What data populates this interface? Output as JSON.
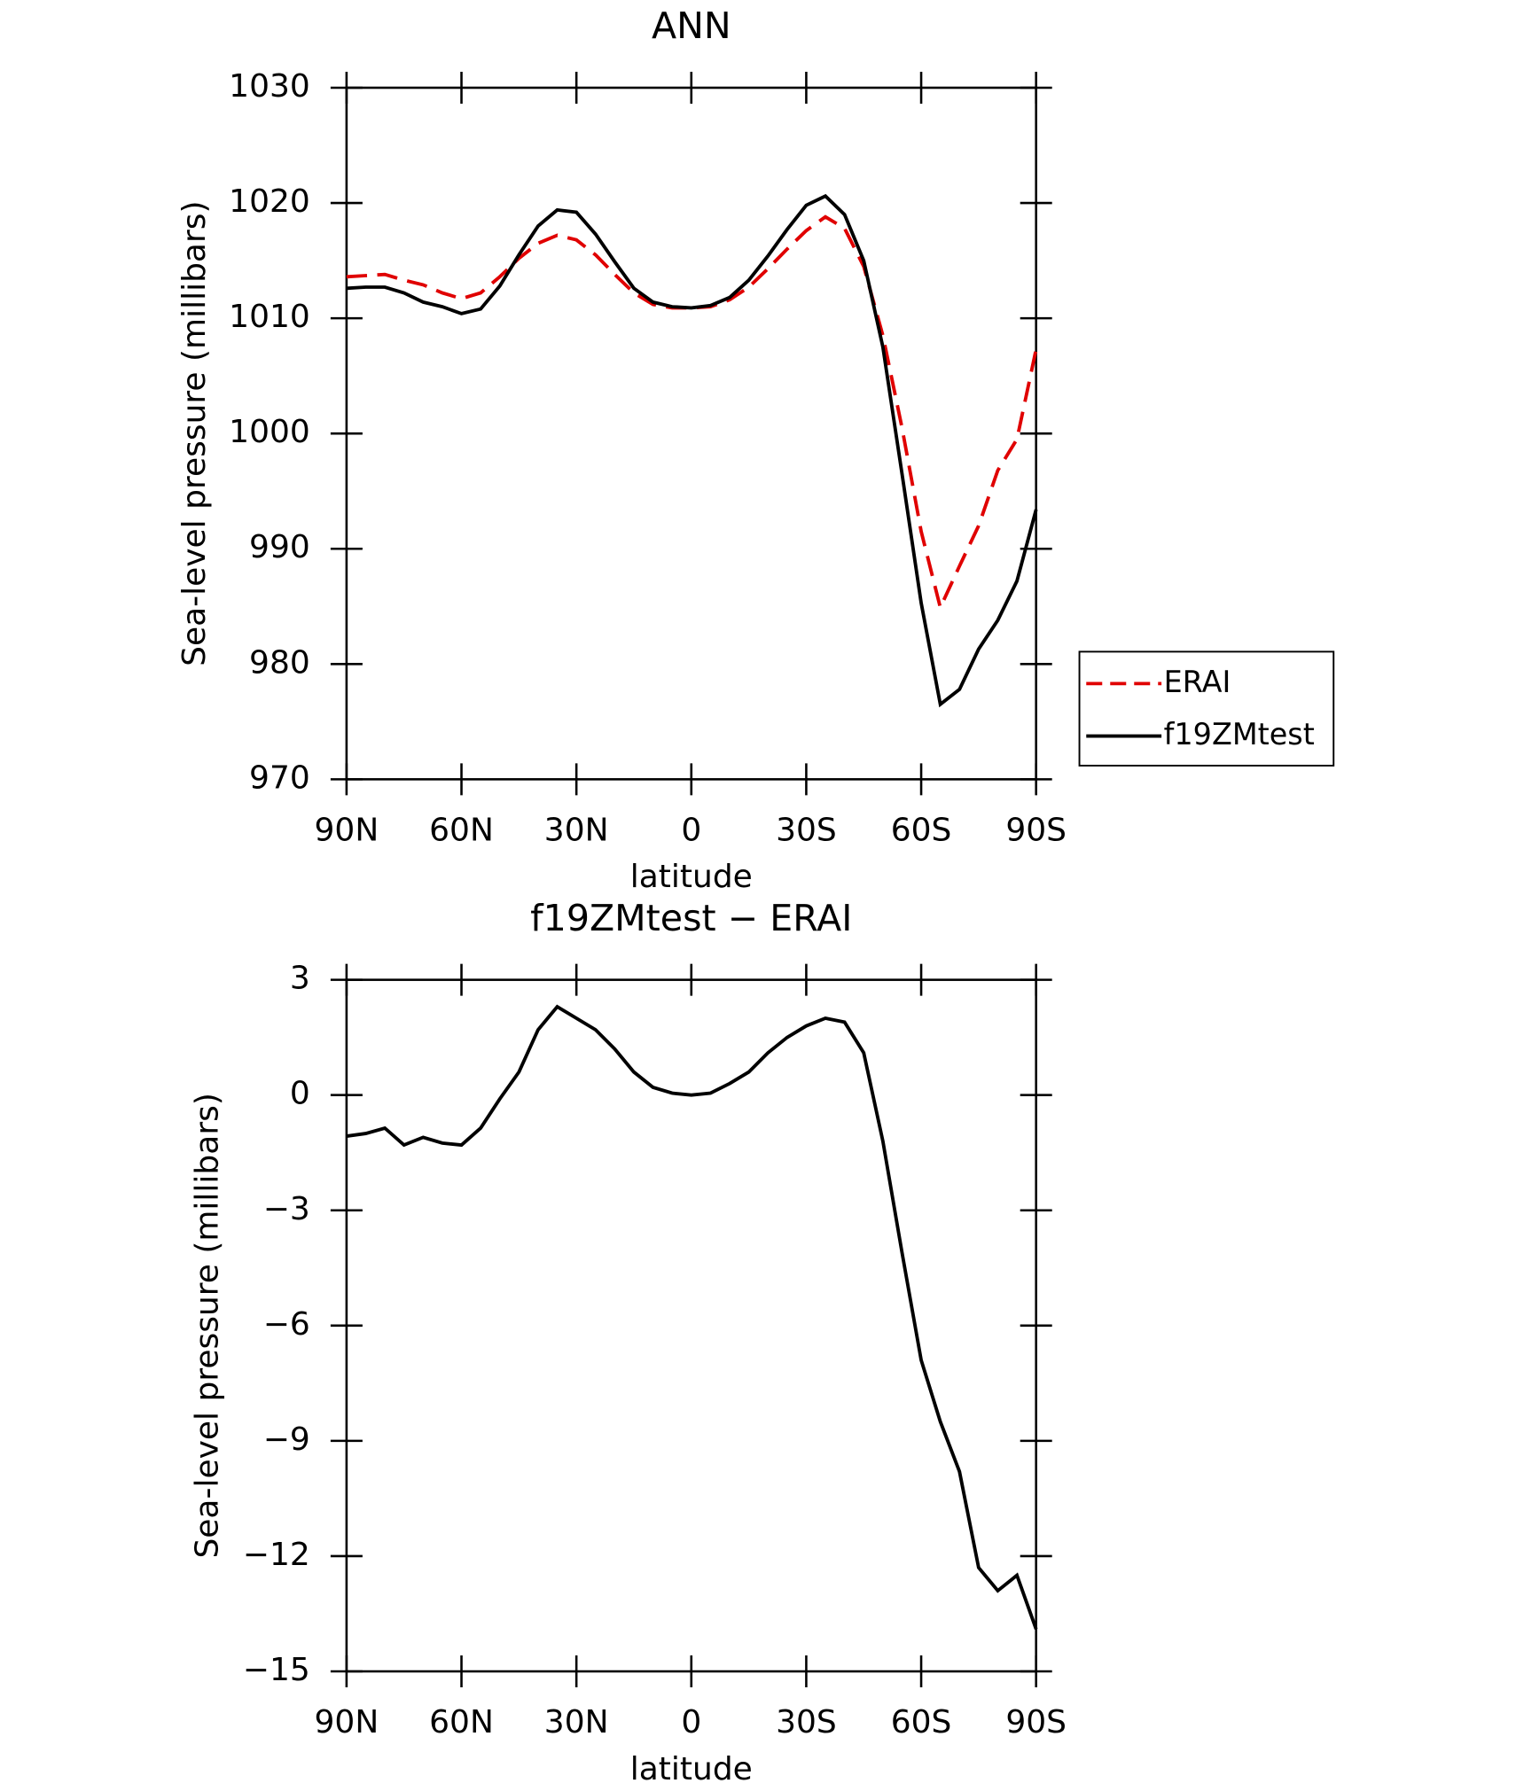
{
  "chart_data": [
    {
      "type": "line",
      "title": "ANN",
      "x_label": "latitude",
      "y_label": "Sea-level pressure (millibars)",
      "x": [
        90,
        85,
        80,
        75,
        70,
        65,
        60,
        55,
        50,
        45,
        40,
        35,
        30,
        25,
        20,
        15,
        10,
        5,
        0,
        -5,
        -10,
        -15,
        -20,
        -25,
        -30,
        -35,
        -40,
        -45,
        -50,
        -55,
        -60,
        -65,
        -70,
        -75,
        -80,
        -85,
        -90
      ],
      "xlim": [
        90,
        -90
      ],
      "xticks": [
        {
          "value": 90,
          "label": "90N"
        },
        {
          "value": 60,
          "label": "60N"
        },
        {
          "value": 30,
          "label": "30N"
        },
        0,
        {
          "value": -30,
          "label": "30S"
        },
        {
          "value": -60,
          "label": "60S"
        },
        {
          "value": -90,
          "label": "90S"
        }
      ],
      "ylim": [
        970,
        1030
      ],
      "yticks": [
        970,
        980,
        990,
        1000,
        1010,
        1020,
        1030
      ],
      "legend": "right",
      "series": [
        {
          "name": "ERAI",
          "color": "#e00000",
          "style": "dashed",
          "values": [
            1013.6,
            1013.7,
            1013.8,
            1013.3,
            1012.9,
            1012.2,
            1011.7,
            1012.2,
            1013.6,
            1015.2,
            1016.5,
            1017.2,
            1016.8,
            1015.5,
            1013.8,
            1012.2,
            1011.2,
            1010.9,
            1010.9,
            1011.0,
            1011.6,
            1012.7,
            1014.3,
            1016.0,
            1017.6,
            1018.8,
            1017.8,
            1014.5,
            1008.5,
            1000.5,
            991.5,
            984.9,
            988.5,
            992.0,
            996.8,
            999.5,
            1007.3
          ]
        },
        {
          "name": "f19ZMtest",
          "color": "#000000",
          "style": "solid",
          "values": [
            1012.6,
            1012.7,
            1012.7,
            1012.2,
            1011.4,
            1011.0,
            1010.4,
            1010.8,
            1012.8,
            1015.5,
            1018.0,
            1019.4,
            1019.2,
            1017.3,
            1014.9,
            1012.6,
            1011.4,
            1011.0,
            1010.9,
            1011.1,
            1011.8,
            1013.3,
            1015.4,
            1017.7,
            1019.8,
            1020.6,
            1019.0,
            1015.0,
            1007.5,
            996.5,
            985.3,
            976.5,
            977.8,
            981.3,
            983.8,
            987.2,
            993.4
          ]
        }
      ]
    },
    {
      "type": "line",
      "title": "f19ZMtest − ERAI",
      "x_label": "latitude",
      "y_label": "Sea-level pressure (millibars)",
      "x": [
        90,
        85,
        80,
        75,
        70,
        65,
        60,
        55,
        50,
        45,
        40,
        35,
        30,
        25,
        20,
        15,
        10,
        5,
        0,
        -5,
        -10,
        -15,
        -20,
        -25,
        -30,
        -35,
        -40,
        -45,
        -50,
        -55,
        -60,
        -65,
        -70,
        -75,
        -80,
        -85,
        -90
      ],
      "xlim": [
        90,
        -90
      ],
      "xticks": [
        {
          "value": 90,
          "label": "90N"
        },
        {
          "value": 60,
          "label": "60N"
        },
        {
          "value": 30,
          "label": "30N"
        },
        0,
        {
          "value": -30,
          "label": "30S"
        },
        {
          "value": -60,
          "label": "60S"
        },
        {
          "value": -90,
          "label": "90S"
        }
      ],
      "ylim": [
        -15,
        3
      ],
      "yticks": [
        {
          "value": -15,
          "label": "−15"
        },
        {
          "value": -12,
          "label": "−12"
        },
        {
          "value": -9,
          "label": "−9"
        },
        {
          "value": -6,
          "label": "−6"
        },
        {
          "value": -3,
          "label": "−3"
        },
        0,
        3
      ],
      "series": [
        {
          "color": "#000000",
          "style": "solid",
          "values": [
            -1.07,
            -1.0,
            -0.86,
            -1.3,
            -1.1,
            -1.25,
            -1.3,
            -0.86,
            -0.1,
            0.6,
            1.7,
            2.3,
            2.0,
            1.7,
            1.2,
            0.6,
            0.2,
            0.05,
            0.0,
            0.05,
            0.3,
            0.6,
            1.1,
            1.5,
            1.8,
            2.0,
            1.9,
            1.1,
            -1.2,
            -4.1,
            -6.9,
            -8.5,
            -9.8,
            -12.3,
            -12.9,
            -12.5,
            -13.9
          ]
        }
      ]
    }
  ]
}
